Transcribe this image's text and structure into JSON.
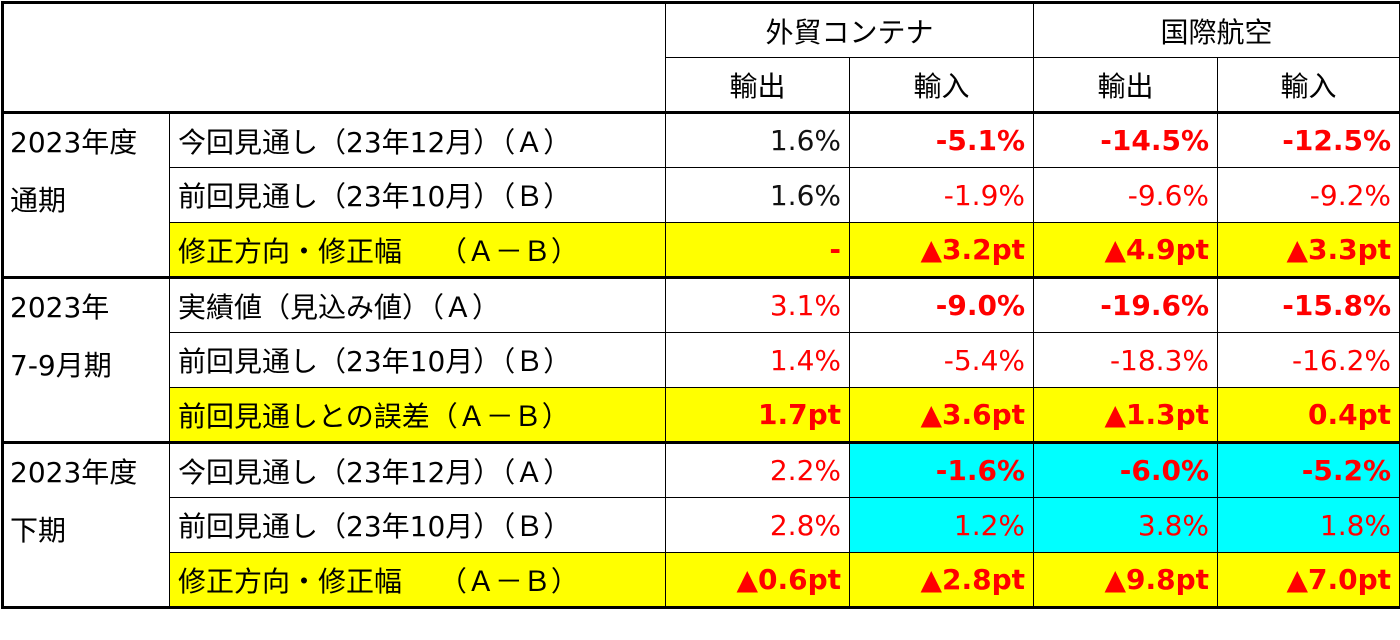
{
  "header": {
    "group1": "外貿コンテナ",
    "group2": "国際航空",
    "sub": [
      "輸出",
      "輸入",
      "輸出",
      "輸入"
    ]
  },
  "colors": {
    "red": "#ff0000",
    "yellow": "#ffff00",
    "cyan": "#00ffff"
  },
  "groups": [
    {
      "label_lines": [
        "2023年度",
        "通期"
      ],
      "rows": [
        {
          "label": "今回見通し（23年12月）（Ａ）",
          "bg": "",
          "cells": [
            {
              "v": "1.6%",
              "c": "black",
              "b": false,
              "bg": ""
            },
            {
              "v": "-5.1%",
              "c": "red",
              "b": true,
              "bg": ""
            },
            {
              "v": "-14.5%",
              "c": "red",
              "b": true,
              "bg": ""
            },
            {
              "v": "-12.5%",
              "c": "red",
              "b": true,
              "bg": ""
            }
          ]
        },
        {
          "label": "前回見通し（23年10月）（Ｂ）",
          "bg": "",
          "cells": [
            {
              "v": "1.6%",
              "c": "black",
              "b": false,
              "bg": ""
            },
            {
              "v": "-1.9%",
              "c": "red",
              "b": false,
              "bg": ""
            },
            {
              "v": "-9.6%",
              "c": "red",
              "b": false,
              "bg": ""
            },
            {
              "v": "-9.2%",
              "c": "red",
              "b": false,
              "bg": ""
            }
          ]
        },
        {
          "label": "修正方向・修正幅　 （Ａ－Ｂ）",
          "bg": "yellow",
          "cells": [
            {
              "v": "-",
              "c": "red",
              "b": true,
              "bg": "yellow"
            },
            {
              "v": "▲3.2pt",
              "c": "red",
              "b": true,
              "bg": "yellow"
            },
            {
              "v": "▲4.9pt",
              "c": "red",
              "b": true,
              "bg": "yellow"
            },
            {
              "v": "▲3.3pt",
              "c": "red",
              "b": true,
              "bg": "yellow"
            }
          ]
        }
      ]
    },
    {
      "label_lines": [
        "2023年",
        "7-9月期"
      ],
      "rows": [
        {
          "label": "実績値（見込み値）（Ａ）",
          "bg": "",
          "cells": [
            {
              "v": "3.1%",
              "c": "red",
              "b": false,
              "bg": ""
            },
            {
              "v": "-9.0%",
              "c": "red",
              "b": true,
              "bg": ""
            },
            {
              "v": "-19.6%",
              "c": "red",
              "b": true,
              "bg": ""
            },
            {
              "v": "-15.8%",
              "c": "red",
              "b": true,
              "bg": ""
            }
          ]
        },
        {
          "label": "前回見通し（23年10月）（Ｂ）",
          "bg": "",
          "cells": [
            {
              "v": "1.4%",
              "c": "red",
              "b": false,
              "bg": ""
            },
            {
              "v": "-5.4%",
              "c": "red",
              "b": false,
              "bg": ""
            },
            {
              "v": "-18.3%",
              "c": "red",
              "b": false,
              "bg": ""
            },
            {
              "v": "-16.2%",
              "c": "red",
              "b": false,
              "bg": ""
            }
          ]
        },
        {
          "label": "前回見通しとの誤差（Ａ－Ｂ）",
          "bg": "yellow",
          "cells": [
            {
              "v": "1.7pt",
              "c": "red",
              "b": true,
              "bg": "yellow"
            },
            {
              "v": "▲3.6pt",
              "c": "red",
              "b": true,
              "bg": "yellow"
            },
            {
              "v": "▲1.3pt",
              "c": "red",
              "b": true,
              "bg": "yellow"
            },
            {
              "v": "0.4pt",
              "c": "red",
              "b": true,
              "bg": "yellow"
            }
          ]
        }
      ]
    },
    {
      "label_lines": [
        "2023年度",
        "下期"
      ],
      "rows": [
        {
          "label": "今回見通し（23年12月）（Ａ）",
          "bg": "",
          "cells": [
            {
              "v": "2.2%",
              "c": "red",
              "b": false,
              "bg": ""
            },
            {
              "v": "-1.6%",
              "c": "red",
              "b": true,
              "bg": "cyan"
            },
            {
              "v": "-6.0%",
              "c": "red",
              "b": true,
              "bg": "cyan"
            },
            {
              "v": "-5.2%",
              "c": "red",
              "b": true,
              "bg": "cyan"
            }
          ]
        },
        {
          "label": "前回見通し（23年10月）（Ｂ）",
          "bg": "",
          "cells": [
            {
              "v": "2.8%",
              "c": "red",
              "b": false,
              "bg": ""
            },
            {
              "v": "1.2%",
              "c": "red",
              "b": false,
              "bg": "cyan"
            },
            {
              "v": "3.8%",
              "c": "red",
              "b": false,
              "bg": "cyan"
            },
            {
              "v": "1.8%",
              "c": "red",
              "b": false,
              "bg": "cyan"
            }
          ]
        },
        {
          "label": "修正方向・修正幅　 （Ａ－Ｂ）",
          "bg": "yellow",
          "cells": [
            {
              "v": "▲0.6pt",
              "c": "red",
              "b": true,
              "bg": "yellow"
            },
            {
              "v": "▲2.8pt",
              "c": "red",
              "b": true,
              "bg": "yellow"
            },
            {
              "v": "▲9.8pt",
              "c": "red",
              "b": true,
              "bg": "yellow"
            },
            {
              "v": "▲7.0pt",
              "c": "red",
              "b": true,
              "bg": "yellow"
            }
          ]
        }
      ]
    }
  ]
}
